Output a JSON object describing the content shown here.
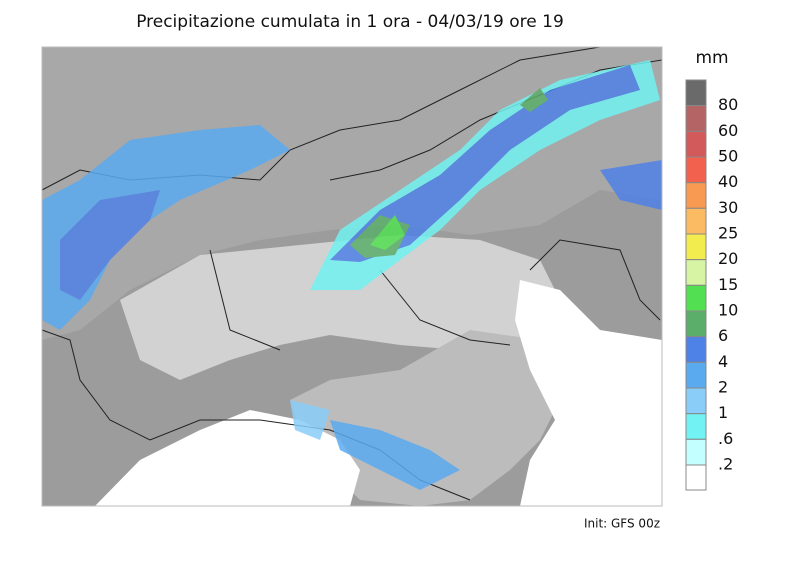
{
  "title": "Precipitazione cumulata in 1 ora - 04/03/19 ore 19",
  "legend": {
    "unit": "mm",
    "items": [
      {
        "label": "80",
        "color": "#6a6a6a"
      },
      {
        "label": "60",
        "color": "#b46464"
      },
      {
        "label": "50",
        "color": "#d25a5a"
      },
      {
        "label": "40",
        "color": "#f2604e"
      },
      {
        "label": "30",
        "color": "#f89a52"
      },
      {
        "label": "25",
        "color": "#fbbb62"
      },
      {
        "label": "20",
        "color": "#f2ec4e"
      },
      {
        "label": "15",
        "color": "#d6f4a4"
      },
      {
        "label": "10",
        "color": "#52e052"
      },
      {
        "label": "6",
        "color": "#5aae6a"
      },
      {
        "label": "4",
        "color": "#4f82e6"
      },
      {
        "label": "2",
        "color": "#5aaaf0"
      },
      {
        "label": "1",
        "color": "#8acdf8"
      },
      {
        "label": ".6",
        "color": "#72f2f2"
      },
      {
        "label": ".2",
        "color": "#c4ffff"
      }
    ]
  },
  "footer": "Init: GFS 00z"
}
